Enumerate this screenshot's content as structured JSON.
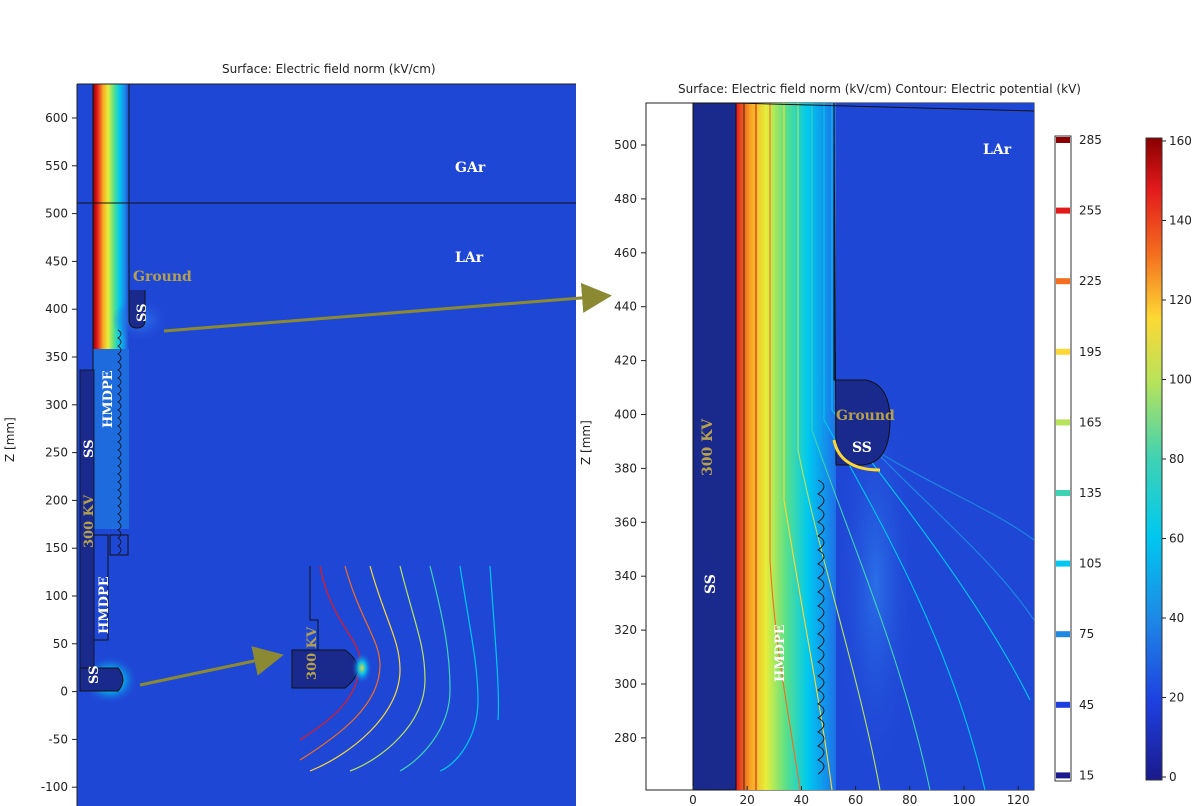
{
  "left_panel": {
    "title": "Surface: Electric field norm (kV/cm)",
    "ylabel": "Z [mm]",
    "y_ticks": [
      "600",
      "550",
      "500",
      "450",
      "400",
      "350",
      "300",
      "250",
      "200",
      "150",
      "100",
      "50",
      "0",
      "-50",
      "-100"
    ],
    "labels": {
      "gar": "GAr",
      "lar": "LAr",
      "ground": "Ground",
      "ss_top": "SS",
      "hmdpe_upper": "HMDPE",
      "ss_left": "SS",
      "kv": "300 KV",
      "hmdpe_lower": "HMDPE",
      "ss_bottom": "SS"
    },
    "inset_label": "300 KV"
  },
  "right_panel": {
    "title": "Surface: Electric field norm (kV/cm)  Contour: Electric potential (kV)",
    "ylabel": "Z [mm]",
    "y_ticks": [
      "500",
      "480",
      "460",
      "440",
      "420",
      "400",
      "380",
      "360",
      "340",
      "320",
      "300",
      "280"
    ],
    "x_ticks": [
      "0",
      "20",
      "40",
      "60",
      "80",
      "100",
      "120"
    ],
    "labels": {
      "lar": "LAr",
      "ground": "Ground",
      "ss_top": "SS",
      "kv": "300 KV",
      "ss_left": "SS",
      "hmdpe": "HMDPE"
    }
  },
  "colorbar_contour": {
    "ticks": [
      "285",
      "255",
      "225",
      "195",
      "165",
      "135",
      "105",
      "75",
      "45",
      "15"
    ],
    "colors": [
      "#8b0000",
      "#e31a1c",
      "#f46d1e",
      "#fdd835",
      "#b7e35a",
      "#3fd2b3",
      "#00c8f0",
      "#1e88e5",
      "#1e3fe0",
      "#1a1a8c"
    ]
  },
  "colorbar_surface": {
    "ticks": [
      "160",
      "140",
      "120",
      "100",
      "80",
      "60",
      "40",
      "20",
      "0"
    ]
  },
  "colors": {
    "field_bg": "#1f47d6",
    "arrow": "#8b8a32",
    "label_gold": "#b5a050"
  }
}
